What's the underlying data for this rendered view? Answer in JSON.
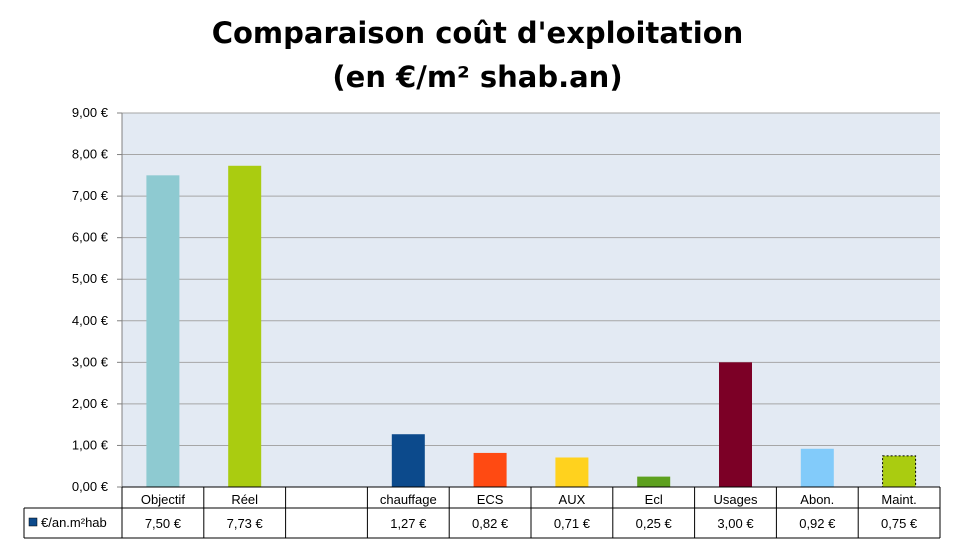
{
  "title_line1": "Comparaison coût d'exploitation",
  "title_line2": "(en €/m² shab.an)",
  "chart_data": {
    "type": "bar",
    "title": "Comparaison coût d'exploitation (en €/m² shab.an)",
    "categories": [
      "Objectif",
      "Réel",
      "",
      "chauffage",
      "ECS",
      "AUX",
      "Ecl",
      "Usages",
      "Abon.",
      "Maint."
    ],
    "series": [
      {
        "name": "€/an.m²hab",
        "values": [
          7.5,
          7.73,
          null,
          1.27,
          0.82,
          0.71,
          0.25,
          3.0,
          0.92,
          0.75
        ],
        "labels": [
          "7,50 €",
          "7,73 €",
          "",
          "1,27 €",
          "0,82 €",
          "0,71 €",
          "0,25 €",
          "3,00 €",
          "0,92 €",
          "0,75 €"
        ],
        "colors": [
          "#8ECAD1",
          "#AACC10",
          null,
          "#0C4A8C",
          "#FF4A12",
          "#FFD21E",
          "#5DA01E",
          "#7C0026",
          "#82CBFA",
          "#AACC10"
        ]
      }
    ],
    "ylim": [
      0,
      9
    ],
    "yticks": [
      0,
      1,
      2,
      3,
      4,
      5,
      6,
      7,
      8,
      9
    ],
    "ytick_labels": [
      "0,00 €",
      "1,00 €",
      "2,00 €",
      "3,00 €",
      "4,00 €",
      "5,00 €",
      "6,00 €",
      "7,00 €",
      "8,00 €",
      "9,00 €"
    ],
    "grid": true,
    "plot_background": "#E3EAF3",
    "gridline_color": "#A6A6A6",
    "legend": "data-table",
    "legend_key_color": "#0C4A8C"
  }
}
